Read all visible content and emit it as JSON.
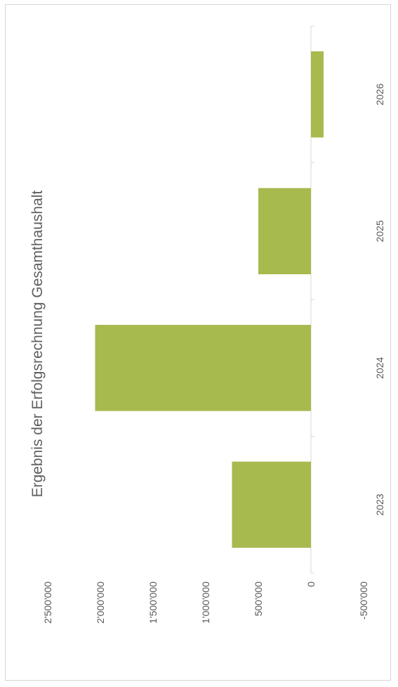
{
  "chart_data": {
    "type": "bar",
    "title": "Ergebnis der Erfolgsrechnung Gesamthaushalt",
    "categories": [
      "2023",
      "2024",
      "2025",
      "2026"
    ],
    "values": [
      750000,
      2050000,
      500000,
      -120000
    ],
    "ylim": [
      -500000,
      2500000
    ],
    "yticks": [
      -500000,
      0,
      500000,
      1000000,
      1500000,
      2000000,
      2500000
    ],
    "ytick_labels": [
      "-500'000",
      "0",
      "500'000",
      "1'000'000",
      "1'500'000",
      "2'000'000",
      "2'500'000"
    ],
    "xlabel": "",
    "ylabel": "",
    "grid": false,
    "bar_color": "#a6ba4e",
    "axis_color": "#d9d9d9"
  }
}
